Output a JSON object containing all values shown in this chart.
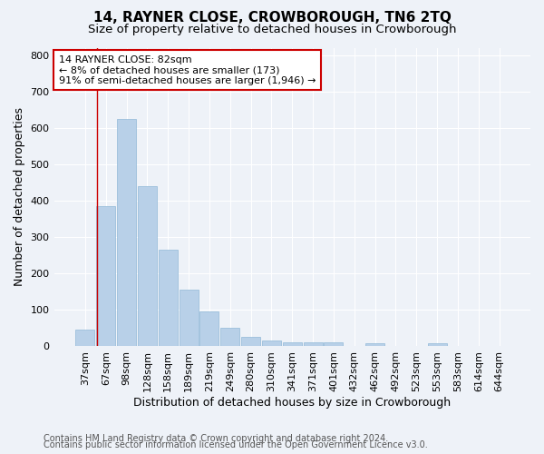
{
  "title": "14, RAYNER CLOSE, CROWBOROUGH, TN6 2TQ",
  "subtitle": "Size of property relative to detached houses in Crowborough",
  "xlabel": "Distribution of detached houses by size in Crowborough",
  "ylabel": "Number of detached properties",
  "categories": [
    "37sqm",
    "67sqm",
    "98sqm",
    "128sqm",
    "158sqm",
    "189sqm",
    "219sqm",
    "249sqm",
    "280sqm",
    "310sqm",
    "341sqm",
    "371sqm",
    "401sqm",
    "432sqm",
    "462sqm",
    "492sqm",
    "523sqm",
    "553sqm",
    "583sqm",
    "614sqm",
    "644sqm"
  ],
  "values": [
    45,
    385,
    625,
    440,
    265,
    155,
    95,
    50,
    27,
    15,
    10,
    12,
    10,
    0,
    8,
    0,
    0,
    8,
    0,
    0,
    0
  ],
  "bar_color": "#b8d0e8",
  "bar_edge_color": "#90b8d8",
  "vline_color": "#cc0000",
  "annotation_text": "14 RAYNER CLOSE: 82sqm\n← 8% of detached houses are smaller (173)\n91% of semi-detached houses are larger (1,946) →",
  "annotation_box_color": "#ffffff",
  "annotation_box_edge": "#cc0000",
  "ylim": [
    0,
    820
  ],
  "yticks": [
    0,
    100,
    200,
    300,
    400,
    500,
    600,
    700,
    800
  ],
  "footer_line1": "Contains HM Land Registry data © Crown copyright and database right 2024.",
  "footer_line2": "Contains public sector information licensed under the Open Government Licence v3.0.",
  "bg_color": "#eef2f8",
  "grid_color": "#ffffff",
  "title_fontsize": 11,
  "subtitle_fontsize": 9.5,
  "axis_label_fontsize": 9,
  "tick_fontsize": 8,
  "annotation_fontsize": 8,
  "footer_fontsize": 7
}
